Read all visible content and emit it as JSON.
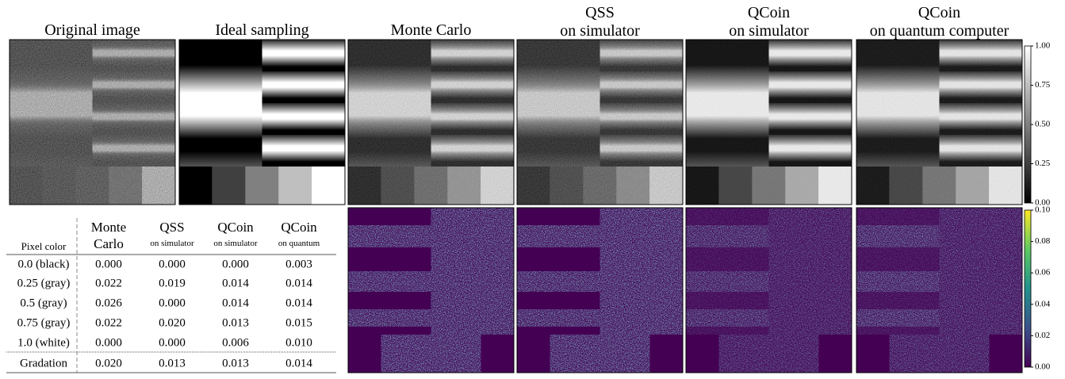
{
  "panels": [
    {
      "title_lines": [
        "Original image"
      ]
    },
    {
      "title_lines": [
        "Ideal sampling"
      ]
    },
    {
      "title_lines": [
        "Monte Carlo"
      ]
    },
    {
      "title_lines": [
        "QSS",
        "on simulator"
      ]
    },
    {
      "title_lines": [
        "QCoin",
        "on simulator"
      ]
    },
    {
      "title_lines": [
        "QCoin",
        "on quantum computer"
      ]
    }
  ],
  "colorbars": [
    {
      "ticks": [
        "1.00",
        "0.75",
        "0.50",
        "0.25",
        "0.00"
      ]
    },
    {
      "ticks": [
        "0.10",
        "0.08",
        "0.06",
        "0.04",
        "0.02",
        "0.00"
      ]
    }
  ],
  "table": {
    "row_header": "Pixel color",
    "columns": [
      [
        "Monte",
        "Carlo"
      ],
      [
        "QSS",
        "on simulator"
      ],
      [
        "QCoin",
        "on simulator"
      ],
      [
        "QCoin",
        "on quantum"
      ]
    ],
    "rows": [
      [
        "0.0 (black)",
        "0.000",
        "0.000",
        "0.000",
        "0.003"
      ],
      [
        "0.25 (gray)",
        "0.022",
        "0.019",
        "0.014",
        "0.014"
      ],
      [
        "0.5 (gray)",
        "0.026",
        "0.000",
        "0.014",
        "0.014"
      ],
      [
        "0.75 (gray)",
        "0.022",
        "0.020",
        "0.013",
        "0.015"
      ],
      [
        "1.0 (white)",
        "0.000",
        "0.000",
        "0.006",
        "0.010"
      ],
      [
        "Gradation",
        "0.020",
        "0.013",
        "0.013",
        "0.014"
      ]
    ]
  }
}
